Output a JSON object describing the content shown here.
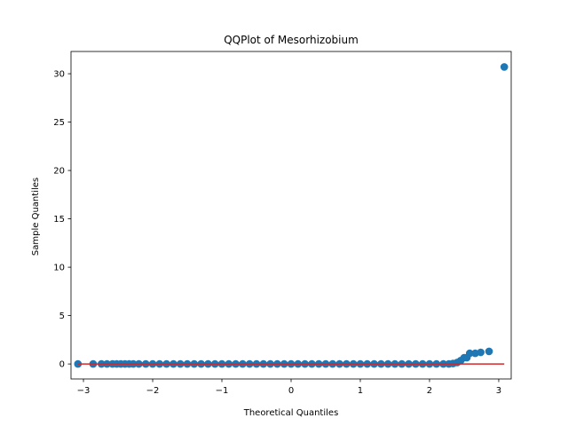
{
  "chart_data": {
    "type": "scatter",
    "title": "QQPlot of Mesorhizobium",
    "xlabel": "Theoretical Quantiles",
    "ylabel": "Sample Quantiles",
    "xlim": [
      -3.18,
      3.18
    ],
    "ylim": [
      -1.55,
      32.3
    ],
    "xticks": [
      -3,
      -2,
      -1,
      0,
      1,
      2,
      3
    ],
    "xtick_labels": [
      "−3",
      "−2",
      "−1",
      "0",
      "1",
      "2",
      "3"
    ],
    "yticks": [
      0,
      5,
      10,
      15,
      20,
      25,
      30
    ],
    "ytick_labels": [
      "0",
      "5",
      "10",
      "15",
      "20",
      "25",
      "30"
    ],
    "grid": false,
    "colors": {
      "points": "#1f77b4",
      "line": "#d62728"
    },
    "reference_line": {
      "x": [
        -3.08,
        3.08
      ],
      "y": [
        0.0,
        0.0
      ]
    },
    "series": [
      {
        "x": [
          -3.08,
          -2.86,
          -2.74,
          -2.66,
          -2.58,
          -2.52,
          -2.46,
          -2.4,
          -2.34,
          -2.28,
          -2.2,
          -2.1,
          -2.0,
          -1.9,
          -1.8,
          -1.7,
          -1.6,
          -1.5,
          -1.4,
          -1.3,
          -1.2,
          -1.1,
          -1.0,
          -0.9,
          -0.8,
          -0.7,
          -0.6,
          -0.5,
          -0.4,
          -0.3,
          -0.2,
          -0.1,
          0.0,
          0.1,
          0.2,
          0.3,
          0.4,
          0.5,
          0.6,
          0.7,
          0.8,
          0.9,
          1.0,
          1.1,
          1.2,
          1.3,
          1.4,
          1.5,
          1.6,
          1.7,
          1.8,
          1.9,
          2.0,
          2.1,
          2.2,
          2.28,
          2.34,
          2.4,
          2.45,
          2.5,
          2.54,
          2.58,
          2.66,
          2.74,
          2.86,
          3.08
        ],
        "y": [
          0.0,
          0.0,
          0.0,
          0.0,
          0.0,
          0.0,
          0.0,
          0.0,
          0.0,
          0.0,
          0.0,
          0.0,
          0.0,
          0.0,
          0.0,
          0.0,
          0.0,
          0.0,
          0.0,
          0.0,
          0.0,
          0.0,
          0.0,
          0.0,
          0.0,
          0.0,
          0.0,
          0.0,
          0.0,
          0.0,
          0.0,
          0.0,
          0.0,
          0.0,
          0.0,
          0.0,
          0.0,
          0.0,
          0.0,
          0.0,
          0.0,
          0.0,
          0.0,
          0.0,
          0.0,
          0.0,
          0.0,
          0.0,
          0.0,
          0.0,
          0.0,
          0.0,
          0.0,
          0.0,
          0.0,
          0.0,
          0.05,
          0.15,
          0.35,
          0.65,
          0.65,
          1.1,
          1.1,
          1.2,
          1.3,
          30.7
        ]
      }
    ]
  }
}
